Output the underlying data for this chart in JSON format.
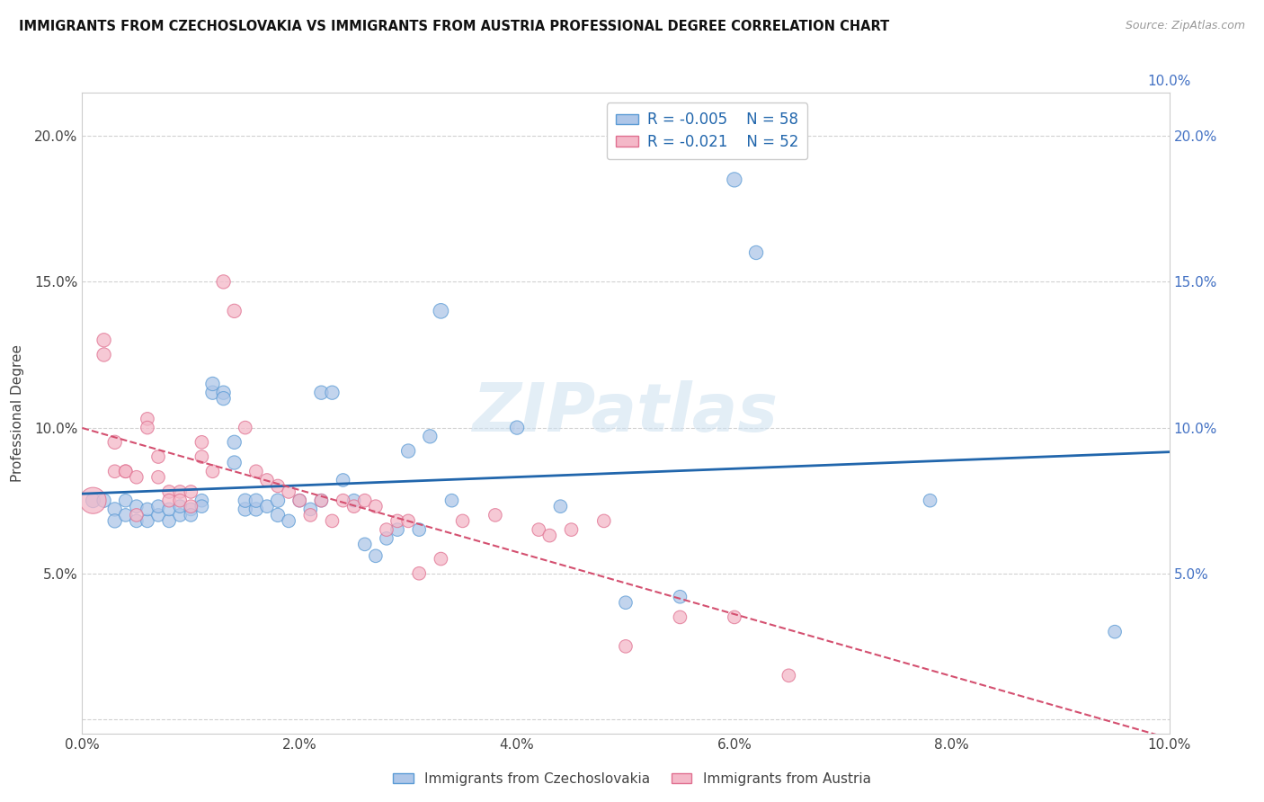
{
  "title": "IMMIGRANTS FROM CZECHOSLOVAKIA VS IMMIGRANTS FROM AUSTRIA PROFESSIONAL DEGREE CORRELATION CHART",
  "source": "Source: ZipAtlas.com",
  "ylabel": "Professional Degree",
  "xlim": [
    0.0,
    0.1
  ],
  "ylim": [
    -0.005,
    0.215
  ],
  "xtick_vals": [
    0.0,
    0.02,
    0.04,
    0.06,
    0.08,
    0.1
  ],
  "xtick_labels": [
    "0.0%",
    "2.0%",
    "4.0%",
    "6.0%",
    "8.0%",
    "10.0%"
  ],
  "ytick_vals": [
    0.0,
    0.05,
    0.1,
    0.15,
    0.2
  ],
  "ytick_labels_left": [
    "",
    "5.0%",
    "10.0%",
    "15.0%",
    "20.0%"
  ],
  "ytick_labels_right": [
    "",
    "5.0%",
    "10.0%",
    "15.0%",
    "20.0%"
  ],
  "r1": "-0.005",
  "n1": "58",
  "r2": "-0.021",
  "n2": "52",
  "color_blue_fill": "#aec6e8",
  "color_blue_edge": "#5b9bd5",
  "color_blue_line": "#2166ac",
  "color_pink_fill": "#f4b8c8",
  "color_pink_edge": "#e07090",
  "color_pink_line": "#d45070",
  "watermark": "ZIPatlas",
  "series1_label": "Immigrants from Czechoslovakia",
  "series2_label": "Immigrants from Austria",
  "blue_x": [
    0.001,
    0.002,
    0.003,
    0.003,
    0.004,
    0.004,
    0.005,
    0.005,
    0.006,
    0.006,
    0.007,
    0.007,
    0.008,
    0.008,
    0.009,
    0.009,
    0.01,
    0.01,
    0.011,
    0.011,
    0.012,
    0.012,
    0.013,
    0.013,
    0.014,
    0.014,
    0.015,
    0.015,
    0.016,
    0.016,
    0.017,
    0.018,
    0.018,
    0.019,
    0.02,
    0.021,
    0.022,
    0.022,
    0.023,
    0.024,
    0.025,
    0.026,
    0.027,
    0.028,
    0.029,
    0.03,
    0.031,
    0.032,
    0.033,
    0.034,
    0.04,
    0.044,
    0.05,
    0.055,
    0.06,
    0.062,
    0.078,
    0.095
  ],
  "blue_y": [
    0.075,
    0.075,
    0.072,
    0.068,
    0.07,
    0.075,
    0.068,
    0.073,
    0.068,
    0.072,
    0.07,
    0.073,
    0.068,
    0.072,
    0.07,
    0.073,
    0.072,
    0.07,
    0.075,
    0.073,
    0.112,
    0.115,
    0.112,
    0.11,
    0.095,
    0.088,
    0.072,
    0.075,
    0.072,
    0.075,
    0.073,
    0.075,
    0.07,
    0.068,
    0.075,
    0.072,
    0.112,
    0.075,
    0.112,
    0.082,
    0.075,
    0.06,
    0.056,
    0.062,
    0.065,
    0.092,
    0.065,
    0.097,
    0.14,
    0.075,
    0.1,
    0.073,
    0.04,
    0.042,
    0.185,
    0.16,
    0.075,
    0.03
  ],
  "blue_s": [
    60,
    55,
    55,
    55,
    50,
    50,
    50,
    50,
    50,
    50,
    50,
    50,
    50,
    50,
    50,
    50,
    50,
    50,
    50,
    50,
    55,
    55,
    55,
    55,
    55,
    55,
    55,
    55,
    55,
    55,
    50,
    55,
    55,
    50,
    50,
    50,
    55,
    50,
    55,
    50,
    50,
    50,
    50,
    50,
    50,
    55,
    50,
    55,
    65,
    50,
    55,
    50,
    50,
    50,
    62,
    55,
    50,
    50
  ],
  "pink_x": [
    0.001,
    0.002,
    0.002,
    0.003,
    0.003,
    0.004,
    0.004,
    0.005,
    0.005,
    0.006,
    0.006,
    0.007,
    0.007,
    0.008,
    0.008,
    0.009,
    0.009,
    0.01,
    0.01,
    0.011,
    0.011,
    0.012,
    0.013,
    0.014,
    0.015,
    0.016,
    0.017,
    0.018,
    0.019,
    0.02,
    0.021,
    0.022,
    0.023,
    0.024,
    0.025,
    0.026,
    0.027,
    0.028,
    0.029,
    0.03,
    0.031,
    0.033,
    0.035,
    0.038,
    0.042,
    0.043,
    0.045,
    0.048,
    0.05,
    0.055,
    0.06,
    0.065
  ],
  "pink_y": [
    0.075,
    0.13,
    0.125,
    0.095,
    0.085,
    0.085,
    0.085,
    0.083,
    0.07,
    0.103,
    0.1,
    0.083,
    0.09,
    0.078,
    0.075,
    0.078,
    0.075,
    0.078,
    0.073,
    0.095,
    0.09,
    0.085,
    0.15,
    0.14,
    0.1,
    0.085,
    0.082,
    0.08,
    0.078,
    0.075,
    0.07,
    0.075,
    0.068,
    0.075,
    0.073,
    0.075,
    0.073,
    0.065,
    0.068,
    0.068,
    0.05,
    0.055,
    0.068,
    0.07,
    0.065,
    0.063,
    0.065,
    0.068,
    0.025,
    0.035,
    0.035,
    0.015
  ],
  "pink_s": [
    200,
    55,
    55,
    55,
    50,
    50,
    50,
    50,
    50,
    50,
    50,
    50,
    50,
    50,
    50,
    50,
    50,
    50,
    50,
    50,
    50,
    50,
    55,
    55,
    50,
    50,
    50,
    50,
    50,
    50,
    50,
    50,
    50,
    50,
    50,
    50,
    50,
    50,
    50,
    50,
    50,
    50,
    50,
    50,
    50,
    50,
    50,
    50,
    50,
    50,
    50,
    50
  ]
}
